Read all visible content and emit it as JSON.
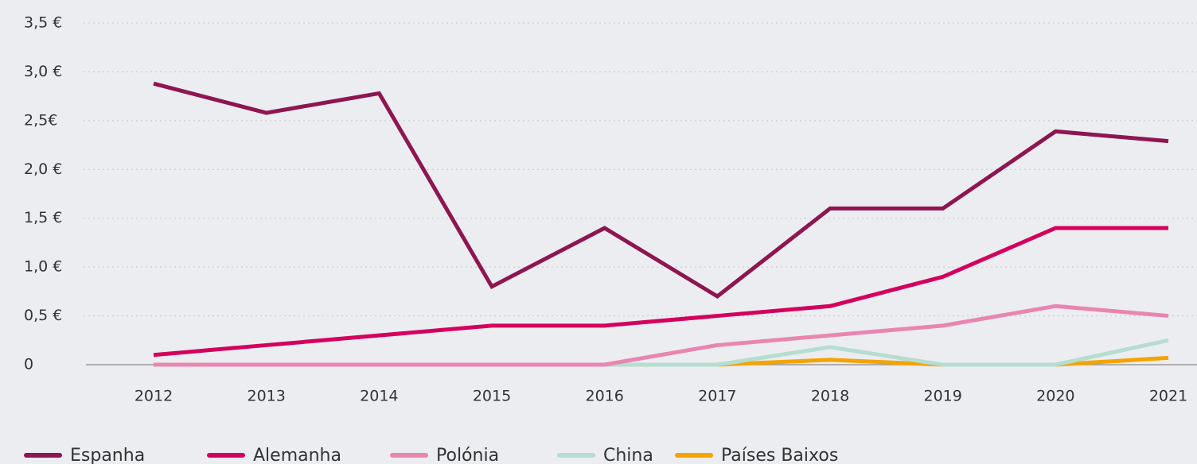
{
  "chart_data": {
    "type": "line",
    "categories": [
      "2012",
      "2013",
      "2014",
      "2015",
      "2016",
      "2017",
      "2018",
      "2019",
      "2020",
      "2021"
    ],
    "series": [
      {
        "name": "Espanha",
        "color": "#8e1650",
        "values": [
          2.88,
          2.58,
          2.78,
          0.8,
          1.4,
          0.7,
          1.6,
          1.6,
          2.39,
          2.29
        ]
      },
      {
        "name": "Alemanha",
        "color": "#d4005d",
        "values": [
          0.1,
          0.2,
          0.3,
          0.4,
          0.4,
          0.5,
          0.6,
          0.9,
          1.4,
          1.4
        ]
      },
      {
        "name": "Polónia",
        "color": "#e986b0",
        "values": [
          0,
          0,
          0,
          0,
          0,
          0.2,
          0.3,
          0.4,
          0.6,
          0.5
        ]
      },
      {
        "name": "China",
        "color": "#b5ddd0",
        "values": [
          null,
          null,
          null,
          null,
          0,
          0,
          0.18,
          0,
          0,
          0.25
        ]
      },
      {
        "name": "Países Baixos",
        "color": "#f5a300",
        "values": [
          null,
          null,
          null,
          null,
          null,
          0,
          0.05,
          0,
          0,
          0.07
        ]
      }
    ],
    "ylim": [
      0,
      3.5
    ],
    "yticks": [
      0,
      {
        "value": 0.5,
        "label": "0,5 €"
      },
      {
        "value": 1.0,
        "label": "1,0 €"
      },
      {
        "value": 1.5,
        "label": "1,5 €"
      },
      {
        "value": 2.0,
        "label": "2,0 €"
      },
      {
        "value": 2.5,
        "label": "2,5€"
      },
      {
        "value": 3.0,
        "label": "3,0 €"
      },
      {
        "value": 3.5,
        "label": "3,5 €"
      }
    ],
    "grid": true,
    "legend": "bottom"
  }
}
